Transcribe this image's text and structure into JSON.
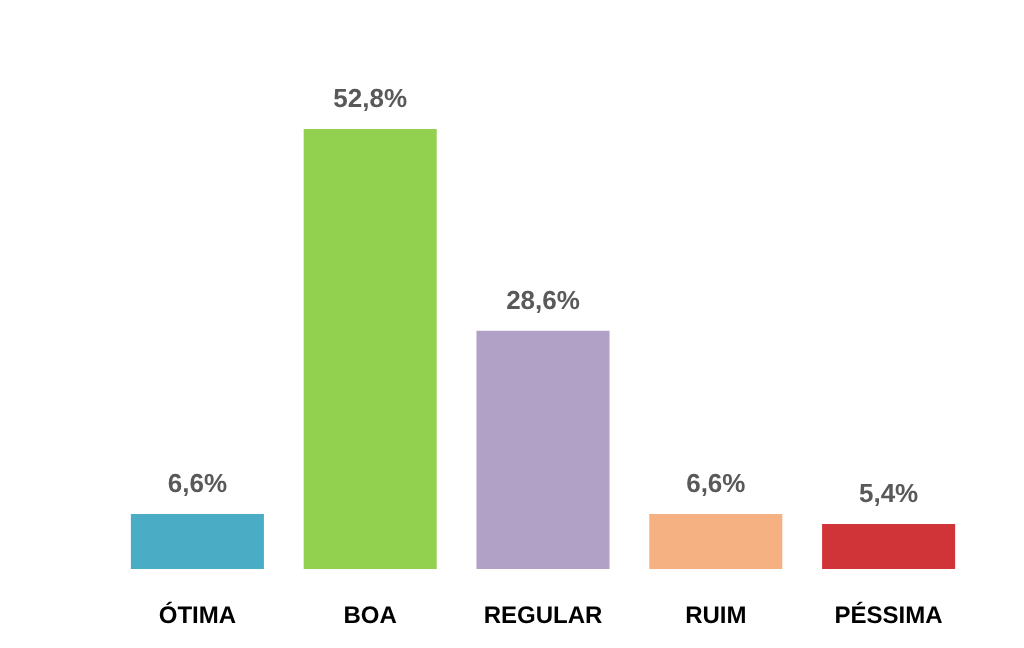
{
  "chart_data": {
    "type": "bar",
    "categories": [
      "ÓTIMA",
      "BOA",
      "REGULAR",
      "RUIM",
      "PÉSSIMA"
    ],
    "values": [
      6.6,
      52.8,
      28.6,
      6.6,
      5.4
    ],
    "colors": [
      "#4bacc6",
      "#92d050",
      "#b2a1c7",
      "#f6b183",
      "#d13438"
    ],
    "value_labels": [
      "6,6%",
      "52,8%",
      "28,6%",
      "6,6%",
      "5,4%"
    ],
    "grid": false
  }
}
